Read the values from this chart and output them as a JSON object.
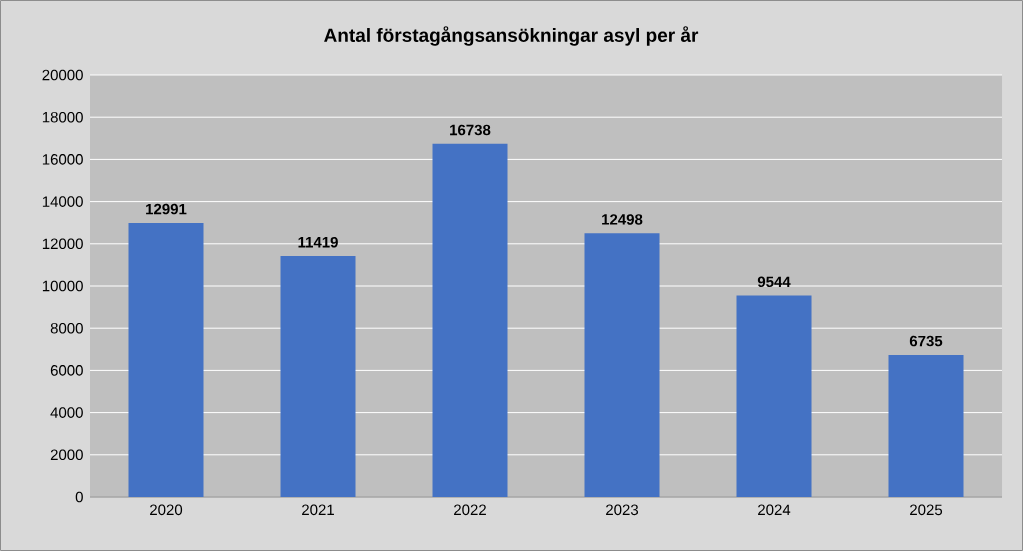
{
  "chart_data": {
    "type": "bar",
    "title": "Antal förstagångsansökningar asyl per år",
    "categories": [
      "2020",
      "2021",
      "2022",
      "2023",
      "2024",
      "2025"
    ],
    "values": [
      12991,
      11419,
      16738,
      12498,
      9544,
      6735
    ],
    "color": "#4472c4",
    "ylim": [
      0,
      20000
    ],
    "yticks": [
      0,
      2000,
      4000,
      6000,
      8000,
      10000,
      12000,
      14000,
      16000,
      18000,
      20000
    ],
    "grid": "y",
    "data_labels": true
  }
}
